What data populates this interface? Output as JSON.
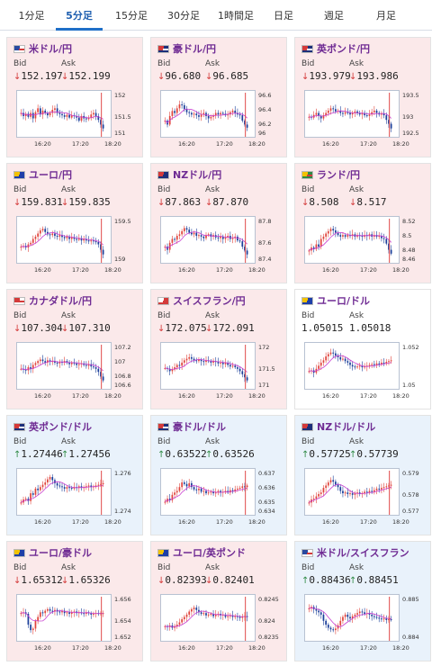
{
  "tabs": [
    {
      "label": "1分足"
    },
    {
      "label": "5分足",
      "active": true
    },
    {
      "label": "15分足"
    },
    {
      "label": "30分足"
    },
    {
      "label": "1時間足"
    },
    {
      "label": "日足"
    },
    {
      "label": "週足"
    },
    {
      "label": "月足"
    }
  ],
  "labels": {
    "bid": "Bid",
    "ask": "Ask"
  },
  "colors": {
    "candle_up": "#e0443c",
    "candle_down": "#1b3f9a",
    "ma": "#c83ed0",
    "cursor_line": "#e04848",
    "title": "#6f2b93"
  },
  "pairs": [
    {
      "name": "米ドル/円",
      "flag": "us",
      "bg": "pink",
      "dir": "down",
      "bid": "152.197",
      "ask": "152.199",
      "chart_data": {
        "type": "candlestick",
        "trend": [
          0.5,
          0.42,
          0.48,
          0.4,
          0.5,
          0.36,
          0.52,
          0.62,
          0.46,
          0.56,
          0.5,
          0.44,
          0.5,
          0.58,
          0.62,
          0.5,
          0.47,
          0.44,
          0.4,
          0.45,
          0.38,
          0.44,
          0.42,
          0.38,
          0.3,
          0.42,
          0.36,
          0.34,
          0.38,
          0.46,
          0.5,
          0.42,
          0.32,
          0.2,
          0.1
        ],
        "ylim": [
          150.9,
          152.3
        ],
        "yticks": [
          "152",
          "151.5",
          "151"
        ],
        "xticks": [
          "16:20",
          "17:20",
          "18:20"
        ]
      }
    },
    {
      "name": "豪ドル/円",
      "flag": "au",
      "bg": "pink",
      "dir": "down",
      "bid": "96.680",
      "ask": "96.685",
      "chart_data": {
        "type": "candlestick",
        "trend": [
          0.3,
          0.2,
          0.42,
          0.55,
          0.5,
          0.62,
          0.72,
          0.7,
          0.6,
          0.52,
          0.5,
          0.46,
          0.48,
          0.44,
          0.4,
          0.46,
          0.5,
          0.42,
          0.36,
          0.4,
          0.44,
          0.5,
          0.46,
          0.5,
          0.48,
          0.44,
          0.46,
          0.52,
          0.56,
          0.5,
          0.46,
          0.44,
          0.3,
          0.2,
          0.12
        ],
        "ylim": [
          95.9,
          96.7
        ],
        "yticks": [
          "96.6",
          "96.4",
          "96.2",
          "96"
        ],
        "xticks": [
          "16:20",
          "17:20",
          "18:20"
        ]
      }
    },
    {
      "name": "英ポンド/円",
      "flag": "gb",
      "bg": "pink",
      "dir": "down",
      "bid": "193.979",
      "ask": "193.986",
      "chart_data": {
        "type": "candlestick",
        "trend": [
          0.4,
          0.38,
          0.45,
          0.5,
          0.42,
          0.36,
          0.44,
          0.5,
          0.56,
          0.62,
          0.6,
          0.54,
          0.56,
          0.5,
          0.48,
          0.52,
          0.5,
          0.46,
          0.5,
          0.54,
          0.5,
          0.46,
          0.5,
          0.44,
          0.42,
          0.46,
          0.52,
          0.56,
          0.5,
          0.46,
          0.48,
          0.44,
          0.32,
          0.22,
          0.1
        ],
        "ylim": [
          192.4,
          194.1
        ],
        "yticks": [
          "193.5",
          "193",
          "192.5"
        ],
        "xticks": [
          "16:20",
          "17:20",
          "18:20"
        ]
      }
    },
    {
      "name": "ユーロ/円",
      "flag": "eu",
      "bg": "pink",
      "dir": "down",
      "bid": "159.831",
      "ask": "159.835",
      "chart_data": {
        "type": "candlestick",
        "trend": [
          0.3,
          0.32,
          0.28,
          0.36,
          0.4,
          0.5,
          0.56,
          0.64,
          0.72,
          0.76,
          0.68,
          0.62,
          0.6,
          0.64,
          0.58,
          0.56,
          0.6,
          0.55,
          0.52,
          0.56,
          0.5,
          0.54,
          0.5,
          0.48,
          0.52,
          0.46,
          0.5,
          0.46,
          0.44,
          0.46,
          0.44,
          0.42,
          0.36,
          0.22,
          0.1
        ],
        "ylim": [
          158.6,
          159.9
        ],
        "yticks": [
          "159.5",
          "159"
        ],
        "xticks": [
          "16:20",
          "17:20",
          "18:20"
        ]
      }
    },
    {
      "name": "NZドル/円",
      "flag": "nz",
      "bg": "pink",
      "dir": "down",
      "bid": "87.863",
      "ask": "87.870",
      "chart_data": {
        "type": "candlestick",
        "trend": [
          0.3,
          0.22,
          0.4,
          0.5,
          0.48,
          0.58,
          0.62,
          0.7,
          0.78,
          0.74,
          0.66,
          0.62,
          0.66,
          0.58,
          0.6,
          0.56,
          0.52,
          0.6,
          0.62,
          0.56,
          0.6,
          0.54,
          0.52,
          0.56,
          0.5,
          0.54,
          0.58,
          0.5,
          0.52,
          0.56,
          0.46,
          0.44,
          0.3,
          0.2,
          0.1
        ],
        "ylim": [
          87.25,
          87.9
        ],
        "yticks": [
          "87.8",
          "87.6",
          "87.4"
        ],
        "xticks": [
          "16:20",
          "17:20",
          "18:20"
        ]
      }
    },
    {
      "name": "ランド/円",
      "flag": "za",
      "bg": "pink",
      "dir": "down",
      "bid": "8.508",
      "ask": "8.517",
      "chart_data": {
        "type": "candlestick",
        "trend": [
          0.2,
          0.28,
          0.24,
          0.36,
          0.3,
          0.5,
          0.56,
          0.64,
          0.7,
          0.76,
          0.72,
          0.66,
          0.6,
          0.56,
          0.6,
          0.56,
          0.6,
          0.58,
          0.62,
          0.56,
          0.6,
          0.58,
          0.56,
          0.6,
          0.58,
          0.62,
          0.56,
          0.6,
          0.56,
          0.58,
          0.52,
          0.5,
          0.38,
          0.22,
          0.12
        ],
        "ylim": [
          8.44,
          8.53
        ],
        "yticks": [
          "8.52",
          "8.5",
          "8.48",
          "8.46"
        ],
        "xticks": [
          "16:20",
          "17:20",
          "18:20"
        ]
      }
    },
    {
      "name": "カナダドル/円",
      "flag": "ca",
      "bg": "pink",
      "dir": "down",
      "bid": "107.304",
      "ask": "107.310",
      "chart_data": {
        "type": "candlestick",
        "trend": [
          0.4,
          0.38,
          0.36,
          0.44,
          0.4,
          0.5,
          0.55,
          0.6,
          0.64,
          0.6,
          0.56,
          0.62,
          0.58,
          0.6,
          0.56,
          0.54,
          0.58,
          0.56,
          0.6,
          0.56,
          0.52,
          0.56,
          0.54,
          0.5,
          0.52,
          0.54,
          0.5,
          0.48,
          0.52,
          0.46,
          0.44,
          0.4,
          0.32,
          0.2,
          0.1
        ],
        "ylim": [
          106.5,
          107.35
        ],
        "yticks": [
          "107.2",
          "107",
          "106.8",
          "106.6"
        ],
        "xticks": [
          "16:20",
          "17:20",
          "18:20"
        ]
      }
    },
    {
      "name": "スイスフラン/円",
      "flag": "ch",
      "bg": "pink",
      "dir": "down",
      "bid": "172.075",
      "ask": "172.091",
      "chart_data": {
        "type": "candlestick",
        "trend": [
          0.42,
          0.4,
          0.34,
          0.38,
          0.44,
          0.5,
          0.48,
          0.56,
          0.62,
          0.66,
          0.7,
          0.66,
          0.62,
          0.6,
          0.64,
          0.6,
          0.58,
          0.62,
          0.6,
          0.56,
          0.6,
          0.58,
          0.54,
          0.56,
          0.52,
          0.56,
          0.5,
          0.46,
          0.48,
          0.44,
          0.4,
          0.34,
          0.26,
          0.18,
          0.1
        ],
        "ylim": [
          170.7,
          172.2
        ],
        "yticks": [
          "172",
          "171.5",
          "171"
        ],
        "xticks": [
          "16:20",
          "17:20",
          "18:20"
        ]
      }
    },
    {
      "name": "ユーロ/ドル",
      "flag": "eu",
      "bg": "white",
      "dir": "none",
      "bid": "1.05015",
      "ask": "1.05018",
      "chart_data": {
        "type": "candlestick",
        "trend": [
          0.34,
          0.36,
          0.3,
          0.4,
          0.48,
          0.56,
          0.62,
          0.72,
          0.78,
          0.82,
          0.8,
          0.74,
          0.7,
          0.64,
          0.66,
          0.6,
          0.56,
          0.5,
          0.46,
          0.44,
          0.46,
          0.48,
          0.44,
          0.46,
          0.48,
          0.5,
          0.52,
          0.5,
          0.54,
          0.52,
          0.56,
          0.54,
          0.58,
          0.6,
          0.62
        ],
        "ylim": [
          1.0485,
          1.0525
        ],
        "yticks": [
          "1.052",
          "1.05"
        ],
        "xticks": [
          "16:20",
          "17:20",
          "18:20"
        ]
      }
    },
    {
      "name": "英ポンド/ドル",
      "flag": "gb",
      "bg": "blue",
      "dir": "up",
      "bid": "1.27446",
      "ask": "1.27456",
      "chart_data": {
        "type": "candlestick",
        "trend": [
          0.2,
          0.28,
          0.3,
          0.24,
          0.44,
          0.4,
          0.56,
          0.52,
          0.6,
          0.66,
          0.72,
          0.8,
          0.86,
          0.78,
          0.7,
          0.64,
          0.62,
          0.6,
          0.56,
          0.6,
          0.58,
          0.56,
          0.6,
          0.58,
          0.62,
          0.58,
          0.6,
          0.62,
          0.64,
          0.6,
          0.62,
          0.64,
          0.66,
          0.68,
          0.7
        ],
        "ylim": [
          1.2735,
          1.2765
        ],
        "yticks": [
          "1.276",
          "1.274"
        ],
        "xticks": [
          "16:20",
          "17:20",
          "18:20"
        ]
      }
    },
    {
      "name": "豪ドル/ドル",
      "flag": "au",
      "bg": "blue",
      "dir": "up",
      "bid": "0.63522",
      "ask": "0.63526",
      "chart_data": {
        "type": "candlestick",
        "trend": [
          0.22,
          0.3,
          0.26,
          0.4,
          0.46,
          0.5,
          0.6,
          0.72,
          0.68,
          0.62,
          0.7,
          0.6,
          0.54,
          0.52,
          0.56,
          0.48,
          0.5,
          0.44,
          0.46,
          0.48,
          0.44,
          0.46,
          0.5,
          0.46,
          0.48,
          0.5,
          0.46,
          0.52,
          0.5,
          0.54,
          0.56,
          0.58,
          0.62,
          0.6,
          0.64
        ],
        "ylim": [
          0.6337,
          0.6372
        ],
        "yticks": [
          "0.637",
          "0.636",
          "0.635",
          "0.634"
        ],
        "xticks": [
          "16:20",
          "17:20",
          "18:20"
        ]
      }
    },
    {
      "name": "NZドル/ドル",
      "flag": "nz",
      "bg": "blue",
      "dir": "up",
      "bid": "0.57725",
      "ask": "0.57739",
      "chart_data": {
        "type": "candlestick",
        "trend": [
          0.2,
          0.28,
          0.3,
          0.36,
          0.42,
          0.46,
          0.58,
          0.64,
          0.72,
          0.78,
          0.74,
          0.66,
          0.6,
          0.5,
          0.44,
          0.46,
          0.42,
          0.44,
          0.4,
          0.44,
          0.46,
          0.42,
          0.44,
          0.48,
          0.46,
          0.5,
          0.48,
          0.52,
          0.56,
          0.54,
          0.58,
          0.6,
          0.62,
          0.64,
          0.66
        ],
        "ylim": [
          0.5766,
          0.5794
        ],
        "yticks": [
          "0.579",
          "0.578",
          "0.577"
        ],
        "xticks": [
          "16:20",
          "17:20",
          "18:20"
        ]
      }
    },
    {
      "name": "ユーロ/豪ドル",
      "flag": "eu",
      "bg": "pink",
      "dir": "down",
      "bid": "1.65312",
      "ask": "1.65326",
      "chart_data": {
        "type": "candlestick",
        "trend": [
          0.6,
          0.62,
          0.58,
          0.3,
          0.16,
          0.2,
          0.4,
          0.5,
          0.62,
          0.6,
          0.66,
          0.7,
          0.66,
          0.64,
          0.68,
          0.64,
          0.62,
          0.66,
          0.6,
          0.62,
          0.58,
          0.62,
          0.64,
          0.6,
          0.62,
          0.6,
          0.58,
          0.62,
          0.6,
          0.56,
          0.58,
          0.6,
          0.58,
          0.6,
          0.6
        ],
        "ylim": [
          1.651,
          1.6575
        ],
        "yticks": [
          "1.656",
          "1.654",
          "1.652"
        ],
        "xticks": [
          "16:20",
          "17:20",
          "18:20"
        ]
      }
    },
    {
      "name": "ユーロ/英ポンド",
      "flag": "eu",
      "bg": "pink",
      "dir": "down",
      "bid": "0.82393",
      "ask": "0.82401",
      "chart_data": {
        "type": "candlestick",
        "trend": [
          0.26,
          0.24,
          0.28,
          0.22,
          0.26,
          0.3,
          0.36,
          0.44,
          0.5,
          0.56,
          0.64,
          0.7,
          0.74,
          0.68,
          0.62,
          0.58,
          0.6,
          0.54,
          0.56,
          0.58,
          0.52,
          0.56,
          0.58,
          0.54,
          0.56,
          0.5,
          0.52,
          0.54,
          0.5,
          0.52,
          0.5,
          0.48,
          0.5,
          0.52,
          0.5
        ],
        "ylim": [
          0.8233,
          0.8248
        ],
        "yticks": [
          "0.8245",
          "0.824",
          "0.8235"
        ],
        "xticks": [
          "16:20",
          "17:20",
          "18:20"
        ]
      }
    },
    {
      "name": "米ドル/スイスフラン",
      "flag": "us",
      "bg": "blue",
      "dir": "up",
      "bid": "0.88436",
      "ask": "0.88451",
      "chart_data": {
        "type": "candlestick",
        "trend": [
          0.72,
          0.76,
          0.7,
          0.66,
          0.62,
          0.56,
          0.4,
          0.3,
          0.22,
          0.18,
          0.16,
          0.2,
          0.28,
          0.4,
          0.5,
          0.56,
          0.5,
          0.46,
          0.52,
          0.56,
          0.6,
          0.64,
          0.62,
          0.58,
          0.6,
          0.56,
          0.52,
          0.5,
          0.48,
          0.46,
          0.44,
          0.46,
          0.42,
          0.44,
          0.42
        ],
        "ylim": [
          0.8835,
          0.8855
        ],
        "yticks": [
          "0.885",
          "0.884"
        ],
        "xticks": [
          "16:20",
          "17:20",
          "18:20"
        ]
      }
    }
  ]
}
